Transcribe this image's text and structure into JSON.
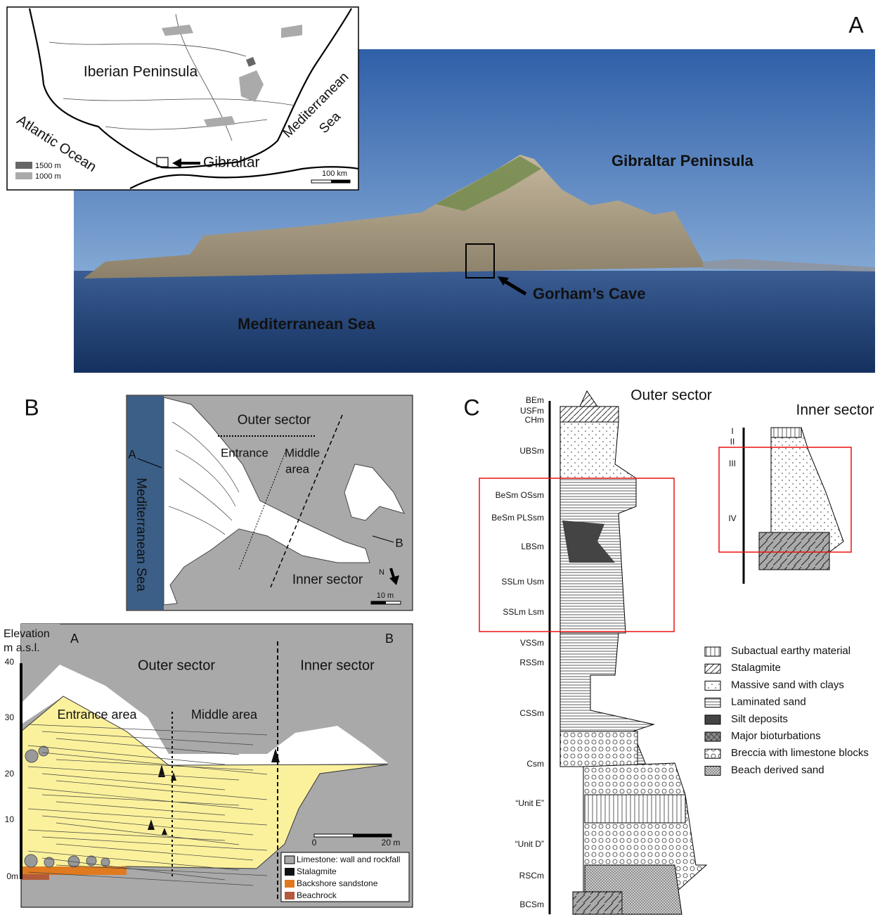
{
  "panel_a": {
    "label": "A",
    "map": {
      "iberia": "Iberian Peninsula",
      "atlantic": "Atlantic Ocean",
      "med_line1": "Mediterranean",
      "med_line2": "Sea",
      "gibraltar": "Gibraltar",
      "legend": [
        "1500 m",
        "1000 m"
      ],
      "scale": "100 km"
    },
    "photo": {
      "peninsula": "Gibraltar Peninsula",
      "cave": "Gorham’s Cave",
      "sea": "Mediterranean Sea"
    }
  },
  "panel_b": {
    "label": "B",
    "plan": {
      "outer": "Outer sector",
      "entrance": "Entrance",
      "middle_line1": "Middle",
      "middle_line2": "area",
      "sea": "Mediterranean Sea",
      "point_a": "A",
      "point_b": "B",
      "inner": "Inner sector",
      "north": "N",
      "scale": "10 m"
    },
    "section": {
      "axis_title_line1": "Elevation",
      "axis_title_line2": "m a.s.l.",
      "ticks": [
        "40",
        "30",
        "20",
        "10",
        "0m"
      ],
      "point_a": "A",
      "point_b": "B",
      "outer": "Outer sector",
      "inner": "Inner sector",
      "entrance": "Entrance area",
      "middle": "Middle area",
      "scale": [
        "0",
        "20 m"
      ],
      "legend": [
        "Limestone: wall and rockfall",
        "Stalagmite",
        "Backshore sandstone",
        "Beachrock"
      ]
    }
  },
  "panel_c": {
    "label": "C",
    "outer": "Outer sector",
    "inner": "Inner sector",
    "units": [
      "BEm",
      "USFm",
      "CHm",
      "UBSm",
      "BeSm OSsm",
      "BeSm PLSsm",
      "LBSm",
      "SSLm Usm",
      "SSLm Lsm",
      "VSSm",
      "RSSm",
      "CSSm",
      "Csm",
      "“Unit E”",
      "“Unit D”",
      "RSCm",
      "BCSm"
    ],
    "inner_units": [
      "I",
      "II",
      "III",
      "IV"
    ],
    "legend": [
      "Subactual earthy material",
      "Stalagmite",
      "Massive sand with clays",
      "Laminated sand",
      "Silt deposits",
      "Major bioturbations",
      "Breccia with limestone blocks",
      "Beach derived sand"
    ]
  }
}
